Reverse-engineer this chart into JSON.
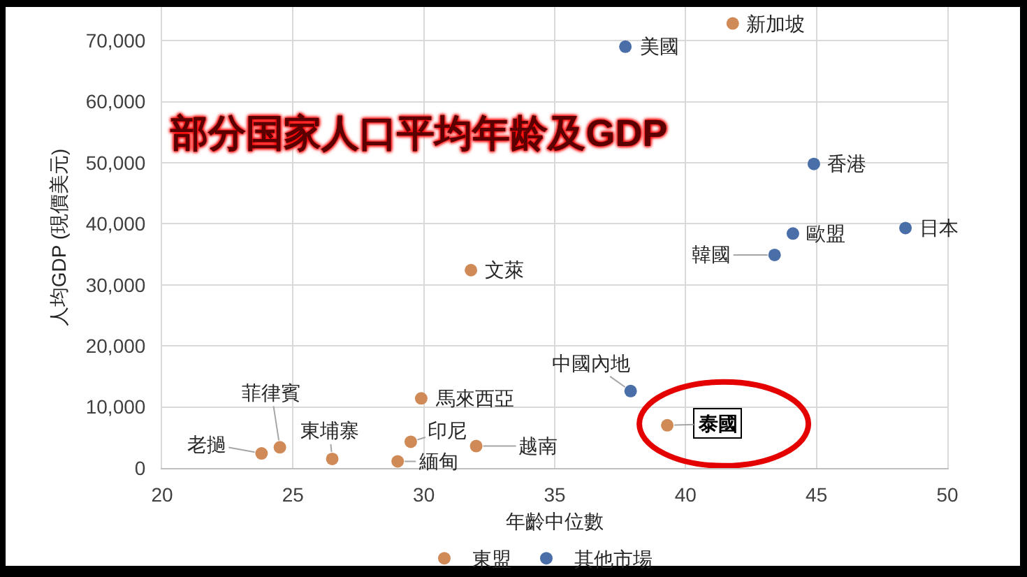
{
  "chart_data": {
    "type": "scatter",
    "title": "部分国家人口平均年龄及GDP",
    "xlabel": "年齡中位數",
    "ylabel": "人均GDP (現價美元)",
    "series": [
      {
        "name": "東盟",
        "color": "#d08a57",
        "x": [
          41.8,
          31.8,
          39.3,
          32.0,
          29.9,
          29.5,
          29.0,
          26.5,
          24.5,
          23.8
        ],
        "values": [
          72800,
          32400,
          7000,
          3600,
          11400,
          4300,
          1100,
          1500,
          3400,
          2400
        ]
      },
      {
        "name": "其他市場",
        "color": "#4a6fa8",
        "x": [
          37.7,
          44.9,
          48.4,
          44.1,
          43.4,
          37.9
        ],
        "values": [
          69000,
          49800,
          39300,
          38400,
          34900,
          12600
        ]
      }
    ],
    "annotations": [
      {
        "text": "新加坡",
        "x": 41.8,
        "y": 72800
      },
      {
        "text": "美國",
        "x": 37.7,
        "y": 69000
      },
      {
        "text": "香港",
        "x": 44.9,
        "y": 49800
      },
      {
        "text": "日本",
        "x": 48.4,
        "y": 39300
      },
      {
        "text": "歐盟",
        "x": 44.1,
        "y": 38400
      },
      {
        "text": "韓國",
        "x": 43.4,
        "y": 34900
      },
      {
        "text": "文萊",
        "x": 31.8,
        "y": 32400
      },
      {
        "text": "中國內地",
        "x": 37.9,
        "y": 12600
      },
      {
        "text": "馬來西亞",
        "x": 29.9,
        "y": 11400
      },
      {
        "text": "泰國",
        "x": 39.3,
        "y": 7000
      },
      {
        "text": "印尼",
        "x": 29.5,
        "y": 4300
      },
      {
        "text": "越南",
        "x": 32.0,
        "y": 3600
      },
      {
        "text": "菲律賓",
        "x": 24.5,
        "y": 3400
      },
      {
        "text": "老撾",
        "x": 23.8,
        "y": 2400
      },
      {
        "text": "東埔寨",
        "x": 26.5,
        "y": 1500
      },
      {
        "text": "緬甸",
        "x": 29.0,
        "y": 1100
      }
    ],
    "xlim": [
      20,
      50
    ],
    "xticks": [
      20,
      25,
      30,
      35,
      40,
      45,
      50
    ],
    "ylim": [
      0,
      75500
    ],
    "yticks": [
      0,
      {
        "value": 10000,
        "label": "10,000"
      },
      {
        "value": 20000,
        "label": "20,000"
      },
      {
        "value": 30000,
        "label": "30,000"
      },
      {
        "value": 40000,
        "label": "40,000"
      },
      {
        "value": 50000,
        "label": "50,000"
      },
      {
        "value": 60000,
        "label": "60,000"
      },
      {
        "value": 70000,
        "label": "70,000"
      }
    ],
    "grid": true,
    "legend": "bottom",
    "marker": "circle"
  }
}
